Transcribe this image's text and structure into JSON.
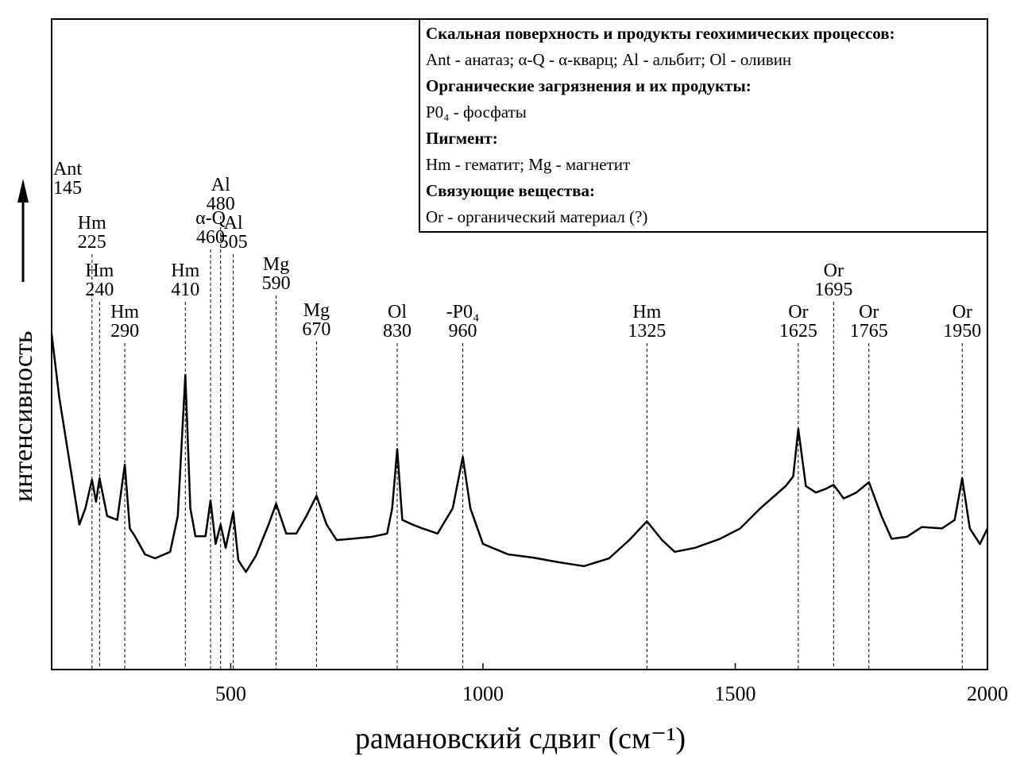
{
  "chart_data": {
    "type": "line",
    "x_label": "рамановский сдвиг (см⁻¹)",
    "y_label": "интенсивность",
    "xlim": [
      145,
      2000
    ],
    "ylim": [
      0,
      100
    ],
    "xticks": [
      500,
      1000,
      1500,
      2000
    ],
    "grid": false,
    "series": [
      {
        "color": "#000000",
        "x": [
          145,
          160,
          185,
          200,
          212,
          225,
          233,
          240,
          255,
          275,
          290,
          300,
          310,
          330,
          350,
          380,
          395,
          410,
          420,
          430,
          450,
          460,
          470,
          480,
          490,
          505,
          515,
          530,
          550,
          575,
          590,
          610,
          630,
          650,
          670,
          690,
          710,
          740,
          780,
          810,
          820,
          830,
          840,
          860,
          880,
          910,
          940,
          960,
          975,
          1000,
          1050,
          1100,
          1150,
          1200,
          1250,
          1290,
          1325,
          1355,
          1380,
          1420,
          1470,
          1510,
          1550,
          1600,
          1615,
          1625,
          1640,
          1660,
          1680,
          1695,
          1715,
          1740,
          1765,
          1790,
          1810,
          1840,
          1870,
          1910,
          1935,
          1950,
          1965,
          1985,
          2000
        ],
        "values": [
          51.6,
          41.9,
          29.7,
          22.3,
          24.8,
          29.2,
          25.8,
          29.4,
          23.6,
          23.0,
          31.5,
          21.7,
          20.5,
          17.7,
          17.1,
          18.1,
          23.6,
          45.3,
          24.8,
          20.5,
          20.5,
          26.0,
          19.3,
          22.3,
          18.7,
          24.2,
          16.8,
          15.0,
          17.5,
          22.3,
          25.5,
          20.9,
          20.9,
          23.6,
          26.7,
          22.3,
          19.9,
          20.1,
          20.4,
          20.9,
          24.8,
          33.9,
          23.0,
          22.3,
          21.7,
          20.9,
          24.8,
          32.7,
          24.8,
          19.3,
          17.7,
          17.2,
          16.5,
          15.9,
          17.1,
          19.9,
          22.8,
          19.9,
          18.1,
          18.7,
          20.1,
          21.7,
          24.8,
          28.2,
          29.7,
          37.0,
          28.2,
          27.2,
          27.8,
          28.4,
          26.3,
          27.2,
          28.8,
          23.6,
          20.1,
          20.4,
          21.9,
          21.7,
          23.0,
          29.4,
          21.7,
          19.3,
          21.7
        ]
      }
    ],
    "peaks": [
      {
        "label": "Ant",
        "x": 145
      },
      {
        "label": "Hm",
        "x": 225
      },
      {
        "label": "Hm",
        "x": 240
      },
      {
        "label": "Hm",
        "x": 290
      },
      {
        "label": "Hm",
        "x": 410
      },
      {
        "label": "α-Q",
        "x": 460
      },
      {
        "label": "Al",
        "x": 480
      },
      {
        "label": "Al",
        "x": 505
      },
      {
        "label": "Mg",
        "x": 590
      },
      {
        "label": "Mg",
        "x": 670
      },
      {
        "label": "Ol",
        "x": 830
      },
      {
        "label": "-P0₄",
        "x": 960
      },
      {
        "label": "Hm",
        "x": 1325
      },
      {
        "label": "Or",
        "x": 1625
      },
      {
        "label": "Or",
        "x": 1695
      },
      {
        "label": "Or",
        "x": 1765
      },
      {
        "label": "Or",
        "x": 1950
      }
    ],
    "legend_box": [
      {
        "text": "Скальная поверхность и продукты геохимических процессов:",
        "bold": true
      },
      {
        "text": "Ant - анатаз; α-Q - α-кварц; Al - альбит; Ol - оливин",
        "bold": false
      },
      {
        "text": "Органические загрязнения и их продукты:",
        "bold": true
      },
      {
        "text": "P0₄ - фосфаты",
        "bold": false
      },
      {
        "text": "Пигмент:",
        "bold": true
      },
      {
        "text": "Hm - гематит; Mg - магнетит",
        "bold": false
      },
      {
        "text": "Связующие вещества:",
        "bold": true
      },
      {
        "text": "Or - органический материал (?)",
        "bold": false
      }
    ]
  }
}
